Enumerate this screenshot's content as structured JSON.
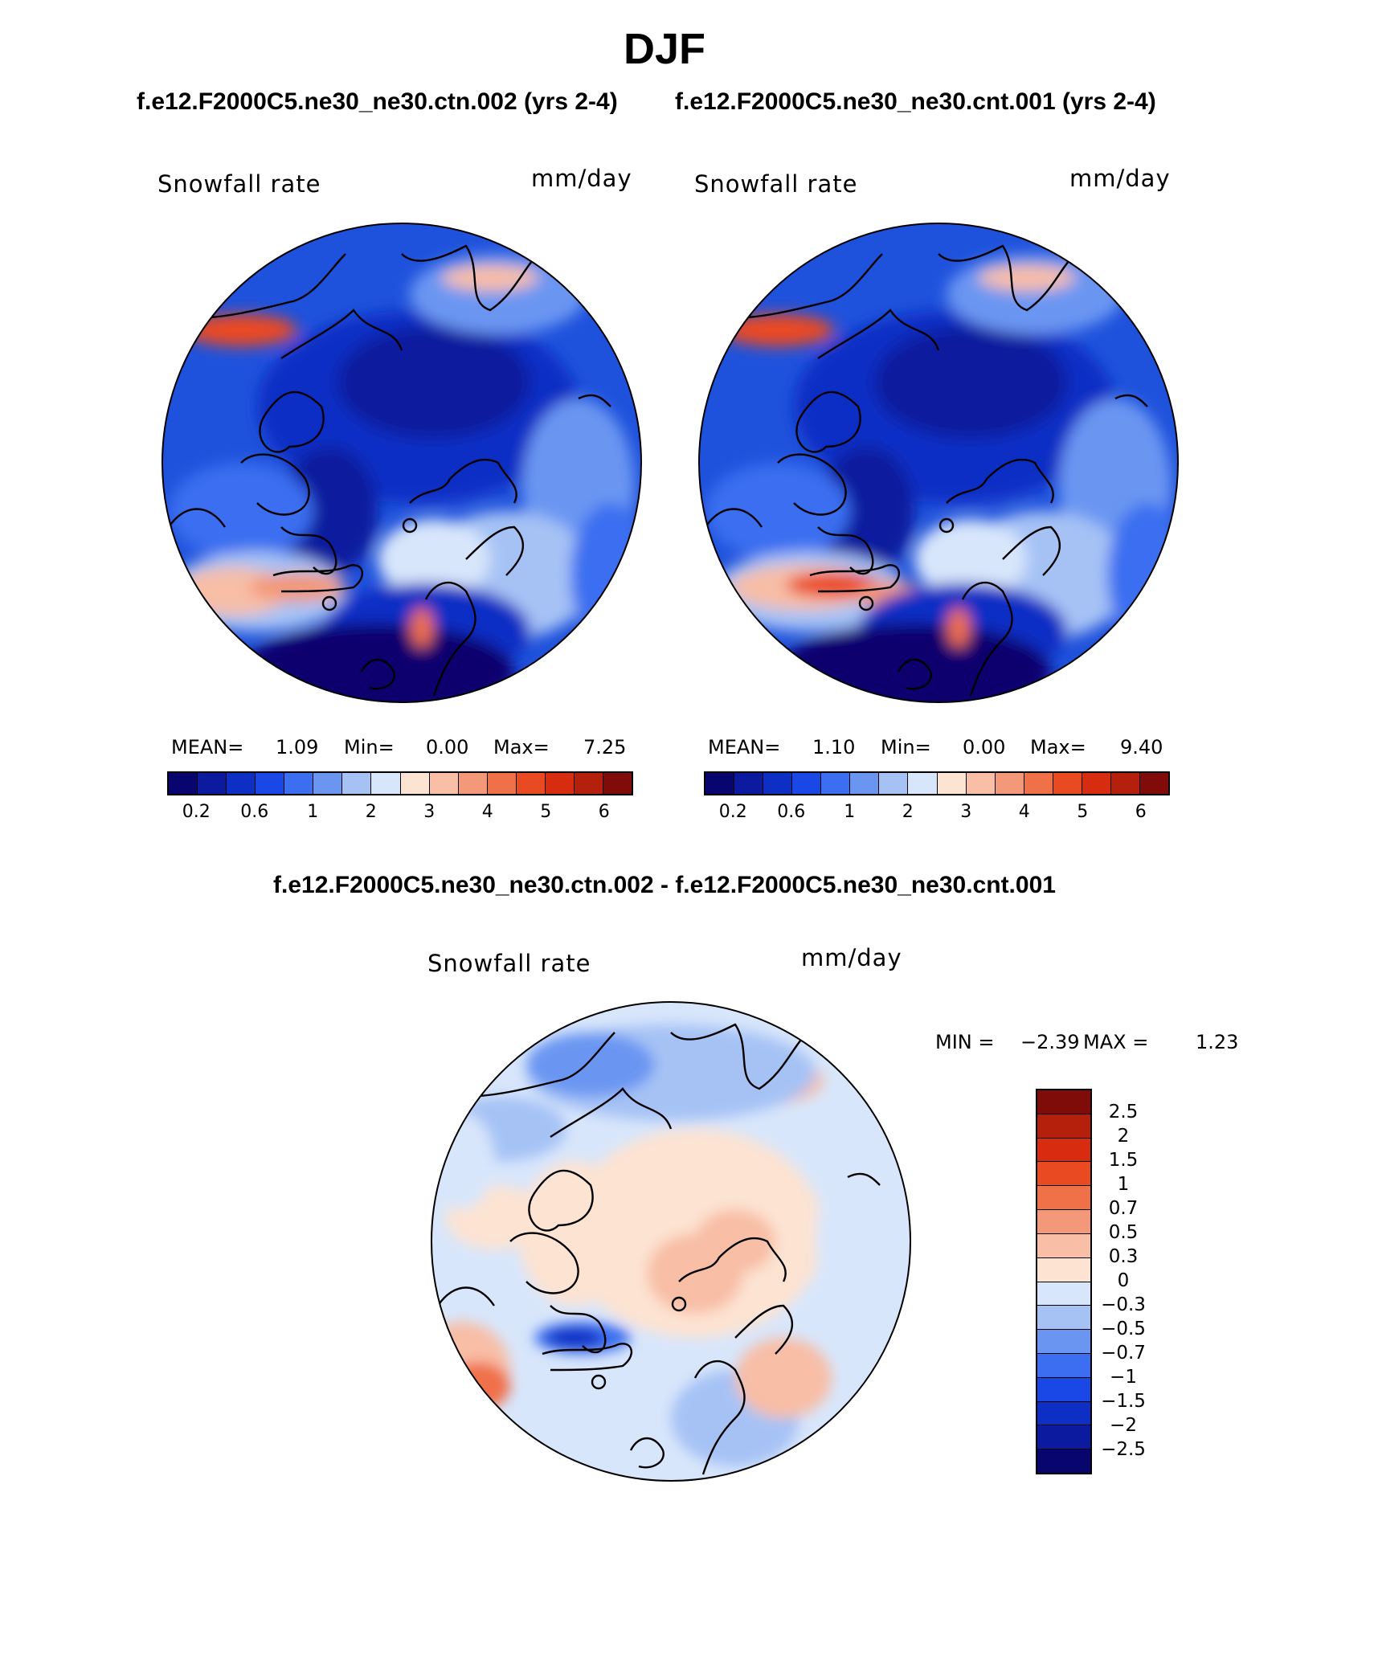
{
  "title": "DJF",
  "subtitle_left": "f.e12.F2000C5.ne30_ne30.ctn.002 (yrs 2-4)",
  "subtitle_right": "f.e12.F2000C5.ne30_ne30.cnt.001 (yrs 2-4)",
  "diff_title": "f.e12.F2000C5.ne30_ne30.ctn.002 - f.e12.F2000C5.ne30_ne30.cnt.001",
  "panels": [
    {
      "variable": "Snowfall rate",
      "units": "mm/day",
      "mean_label": "MEAN=",
      "mean": "1.09",
      "min_label": "Min=",
      "min": "0.00",
      "max_label": "Max=",
      "max": "7.25"
    },
    {
      "variable": "Snowfall rate",
      "units": "mm/day",
      "mean_label": "MEAN=",
      "mean": "1.10",
      "min_label": "Min=",
      "min": "0.00",
      "max_label": "Max=",
      "max": "9.40"
    }
  ],
  "diff_panel": {
    "variable": "Snowfall rate",
    "units": "mm/day",
    "min_label": "MIN =",
    "min": "−2.39",
    "max_label": "MAX =",
    "max": "1.23"
  },
  "colorbar": {
    "tick_labels": [
      "0.2",
      "0.6",
      "1",
      "2",
      "3",
      "4",
      "5",
      "6"
    ],
    "colors": [
      "#08066e",
      "#0b1a9e",
      "#0d2fc4",
      "#1a48e6",
      "#3b6ef0",
      "#6a96f2",
      "#a6c2f5",
      "#d8e6fb",
      "#fde3d2",
      "#f8bea6",
      "#f39878",
      "#f07048",
      "#ea4a22",
      "#d82c10",
      "#b4200c",
      "#800c0a"
    ]
  },
  "diff_colorbar": {
    "tick_labels": [
      "2.5",
      "2",
      "1.5",
      "1",
      "0.7",
      "0.5",
      "0.3",
      "0",
      "−0.3",
      "−0.5",
      "−0.7",
      "−1",
      "−1.5",
      "−2",
      "−2.5"
    ],
    "colors": [
      "#800c0a",
      "#b4200c",
      "#d82c10",
      "#ea4a22",
      "#f07048",
      "#f39878",
      "#f8bea6",
      "#fde3d2",
      "#d8e6fb",
      "#a6c2f5",
      "#6a96f2",
      "#3b6ef0",
      "#1a48e6",
      "#0d2fc4",
      "#0b1a9e",
      "#08066e"
    ]
  }
}
